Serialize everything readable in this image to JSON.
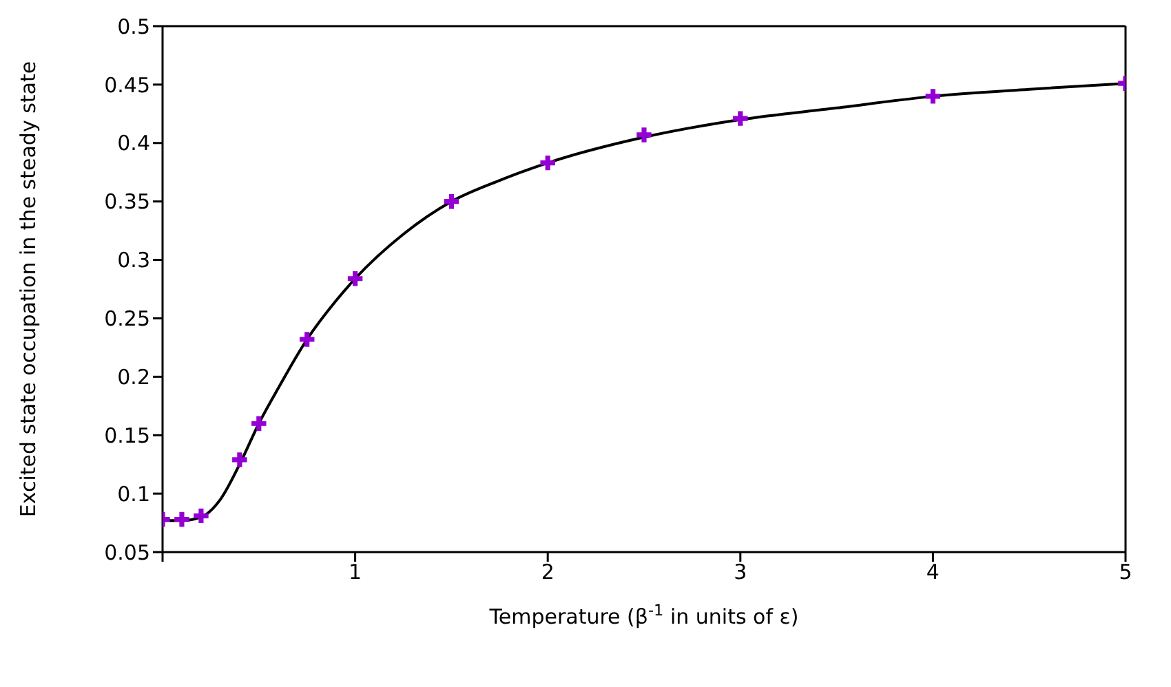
{
  "chart_data": {
    "type": "scatter",
    "xlabel": "Temperature (β$^{-1}$ in units of ε)",
    "ylabel": "Excited state occupation in the steady state",
    "xlim": [
      0,
      5
    ],
    "xticks": [
      {
        "value": 0,
        "label": null
      },
      1,
      2,
      3,
      4,
      5
    ],
    "ylim": [
      0.05,
      0.5
    ],
    "yticks": [
      0.05,
      0.1,
      0.15,
      0.2,
      0.25,
      0.3,
      0.35,
      0.4,
      0.45,
      0.5
    ],
    "series": [
      {
        "type": "line",
        "color": "#000000",
        "marker": "none",
        "line_style": "solid",
        "x": [
          0,
          0.1,
          0.2,
          0.3,
          0.4,
          0.5,
          0.6,
          0.75,
          0.9,
          1,
          1.25,
          1.5,
          1.75,
          2,
          2.5,
          3,
          3.5,
          4,
          4.5,
          5
        ],
        "values": [
          0.077,
          0.077,
          0.08,
          0.095,
          0.125,
          0.16,
          0.19,
          0.232,
          0.265,
          0.284,
          0.322,
          0.35,
          0.368,
          0.383,
          0.405,
          0.42,
          0.43,
          0.44,
          0.446,
          0.451
        ]
      },
      {
        "color": "#9400d3",
        "marker": "cross",
        "x": [
          0,
          0.1,
          0.2,
          0.4,
          0.5,
          0.75,
          1,
          1.5,
          2,
          2.5,
          3,
          4,
          5
        ],
        "values": [
          0.078,
          0.078,
          0.081,
          0.129,
          0.16,
          0.232,
          0.284,
          0.35,
          0.383,
          0.407,
          0.421,
          0.44,
          0.451
        ]
      }
    ]
  }
}
